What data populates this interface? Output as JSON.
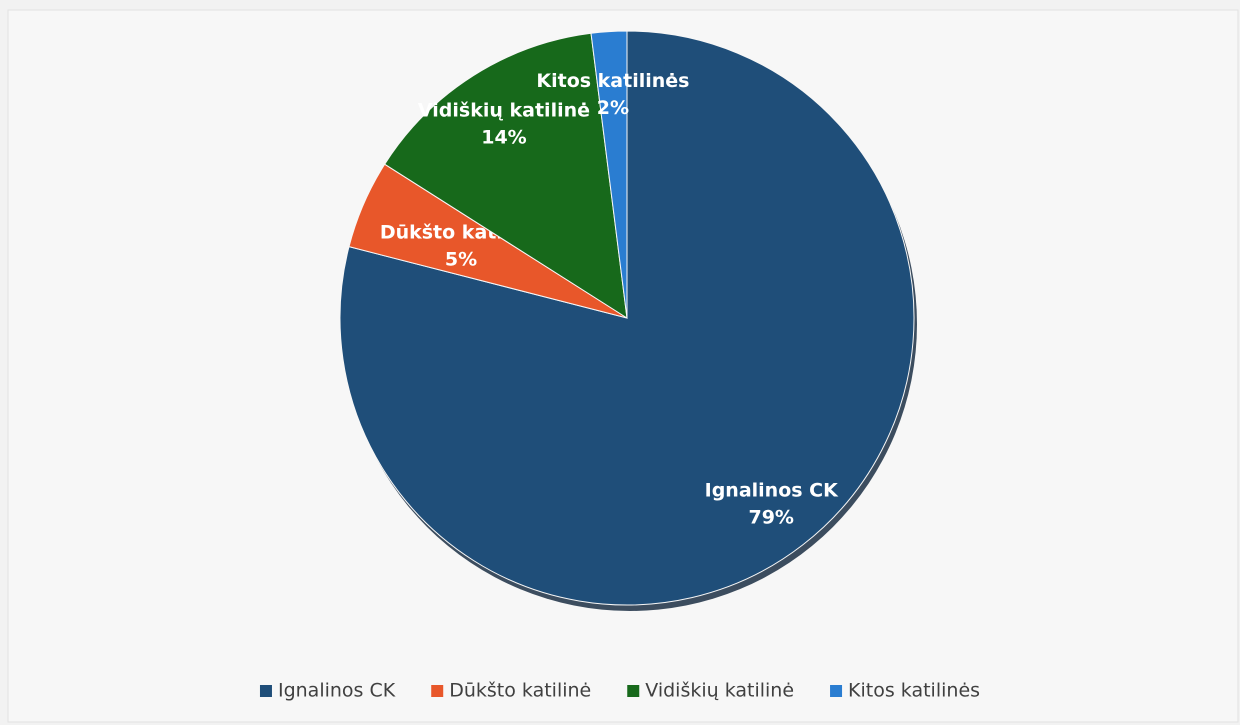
{
  "chart_data": {
    "type": "pie",
    "categories": [
      "Ignalinos CK",
      "Dūkšto katilinė",
      "Vidiškių katilinė",
      "Kitos katilinės"
    ],
    "values": [
      79,
      5,
      14,
      2
    ],
    "value_labels": [
      "79%",
      "5%",
      "14%",
      "2%"
    ],
    "colors": [
      "#1f4e79",
      "#e8572a",
      "#17691b",
      "#2a7dd1"
    ],
    "legend": "bottom"
  }
}
